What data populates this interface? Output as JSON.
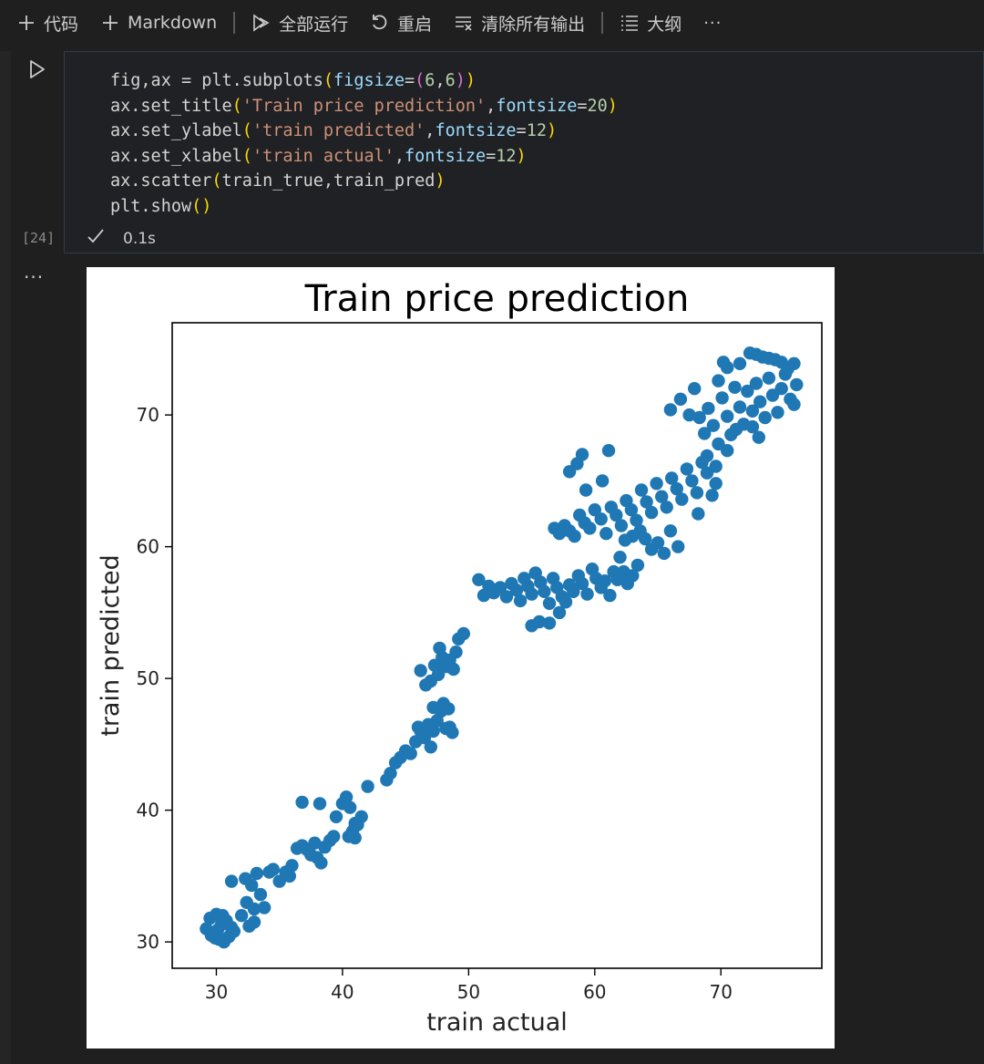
{
  "toolbar": {
    "add_code": "代码",
    "add_markdown": "Markdown",
    "run_all": "全部运行",
    "restart": "重启",
    "clear_outputs": "清除所有输出",
    "outline": "大纲",
    "more": "···"
  },
  "cell": {
    "execution_count": "[24]",
    "exec_time": "0.1s",
    "lines": [
      [
        {
          "t": "fig,ax = plt.subplots",
          "c": ""
        },
        {
          "t": "(",
          "c": "p1"
        },
        {
          "t": "figsize",
          "c": "kw"
        },
        {
          "t": "=",
          "c": ""
        },
        {
          "t": "(",
          "c": "p2"
        },
        {
          "t": "6",
          "c": "num"
        },
        {
          "t": ",",
          "c": ""
        },
        {
          "t": "6",
          "c": "num"
        },
        {
          "t": ")",
          "c": "p2"
        },
        {
          "t": ")",
          "c": "p1"
        }
      ],
      [
        {
          "t": "ax.set_title",
          "c": ""
        },
        {
          "t": "(",
          "c": "p1"
        },
        {
          "t": "'Train price prediction'",
          "c": "str"
        },
        {
          "t": ",",
          "c": ""
        },
        {
          "t": "fontsize",
          "c": "kw"
        },
        {
          "t": "=",
          "c": ""
        },
        {
          "t": "20",
          "c": "num"
        },
        {
          "t": ")",
          "c": "p1"
        }
      ],
      [
        {
          "t": "ax.set_ylabel",
          "c": ""
        },
        {
          "t": "(",
          "c": "p1"
        },
        {
          "t": "'train predicted'",
          "c": "str"
        },
        {
          "t": ",",
          "c": ""
        },
        {
          "t": "fontsize",
          "c": "kw"
        },
        {
          "t": "=",
          "c": ""
        },
        {
          "t": "12",
          "c": "num"
        },
        {
          "t": ")",
          "c": "p1"
        }
      ],
      [
        {
          "t": "ax.set_xlabel",
          "c": ""
        },
        {
          "t": "(",
          "c": "p1"
        },
        {
          "t": "'train actual'",
          "c": "str"
        },
        {
          "t": ",",
          "c": ""
        },
        {
          "t": "fontsize",
          "c": "kw"
        },
        {
          "t": "=",
          "c": ""
        },
        {
          "t": "12",
          "c": "num"
        },
        {
          "t": ")",
          "c": "p1"
        }
      ],
      [
        {
          "t": "ax.scatter",
          "c": ""
        },
        {
          "t": "(",
          "c": "p1"
        },
        {
          "t": "train_true,train_pred",
          "c": ""
        },
        {
          "t": ")",
          "c": "p1"
        }
      ],
      [
        {
          "t": "plt.show",
          "c": ""
        },
        {
          "t": "()",
          "c": "p1"
        }
      ]
    ]
  },
  "output": {
    "ellipsis": "···"
  },
  "chart_data": {
    "type": "scatter",
    "title": "Train price prediction",
    "xlabel": "train actual",
    "ylabel": "train predicted",
    "xlim": [
      26.5,
      78
    ],
    "ylim": [
      28,
      77
    ],
    "xticks": [
      30,
      40,
      50,
      60,
      70
    ],
    "yticks": [
      30,
      40,
      50,
      60,
      70
    ],
    "color": "#1f77b4",
    "points": [
      [
        29.2,
        31.0
      ],
      [
        29.5,
        31.8
      ],
      [
        29.8,
        30.6
      ],
      [
        30.0,
        32.1
      ],
      [
        30.2,
        30.2
      ],
      [
        30.4,
        31.3
      ],
      [
        30.6,
        30.0
      ],
      [
        30.8,
        31.6
      ],
      [
        31.0,
        30.4
      ],
      [
        31.2,
        31.1
      ],
      [
        30.1,
        30.9
      ],
      [
        29.9,
        30.3
      ],
      [
        30.5,
        32.0
      ],
      [
        31.4,
        30.8
      ],
      [
        29.6,
        30.5
      ],
      [
        31.2,
        34.6
      ],
      [
        32.0,
        32.0
      ],
      [
        32.4,
        33.0
      ],
      [
        32.6,
        31.2
      ],
      [
        32.8,
        34.3
      ],
      [
        33.0,
        32.5
      ],
      [
        33.2,
        35.2
      ],
      [
        33.5,
        33.6
      ],
      [
        33.8,
        32.6
      ],
      [
        34.2,
        35.3
      ],
      [
        34.5,
        35.5
      ],
      [
        35.0,
        34.6
      ],
      [
        35.5,
        35.3
      ],
      [
        35.8,
        35.0
      ],
      [
        36.0,
        35.8
      ],
      [
        32.3,
        34.8
      ],
      [
        33.0,
        31.5
      ],
      [
        36.4,
        37.1
      ],
      [
        36.8,
        37.3
      ],
      [
        37.2,
        37.0
      ],
      [
        37.5,
        36.6
      ],
      [
        37.8,
        37.5
      ],
      [
        38.0,
        36.4
      ],
      [
        38.3,
        36.0
      ],
      [
        38.6,
        37.2
      ],
      [
        39.0,
        37.7
      ],
      [
        39.3,
        38.0
      ],
      [
        36.8,
        40.6
      ],
      [
        38.2,
        40.5
      ],
      [
        39.5,
        39.5
      ],
      [
        40.0,
        40.5
      ],
      [
        40.3,
        41.0
      ],
      [
        40.6,
        40.2
      ],
      [
        40.8,
        38.4
      ],
      [
        41.0,
        39.0
      ],
      [
        41.2,
        38.9
      ],
      [
        41.5,
        39.5
      ],
      [
        41.0,
        37.9
      ],
      [
        40.5,
        38.0
      ],
      [
        42.0,
        41.8
      ],
      [
        43.5,
        42.3
      ],
      [
        43.8,
        42.8
      ],
      [
        44.2,
        43.6
      ],
      [
        44.6,
        44.0
      ],
      [
        45.0,
        44.5
      ],
      [
        45.4,
        44.3
      ],
      [
        45.8,
        45.2
      ],
      [
        46.2,
        46.0
      ],
      [
        46.5,
        45.5
      ],
      [
        46.8,
        46.5
      ],
      [
        47.2,
        46.0
      ],
      [
        47.5,
        46.8
      ],
      [
        47.8,
        47.5
      ],
      [
        48.2,
        46.2
      ],
      [
        48.5,
        46.3
      ],
      [
        48.7,
        45.9
      ],
      [
        47.0,
        44.8
      ],
      [
        46.0,
        46.3
      ],
      [
        46.2,
        50.6
      ],
      [
        46.6,
        49.5
      ],
      [
        47.0,
        49.8
      ],
      [
        47.3,
        51.0
      ],
      [
        47.6,
        50.3
      ],
      [
        47.9,
        51.6
      ],
      [
        48.2,
        50.9
      ],
      [
        48.5,
        51.4
      ],
      [
        48.8,
        50.7
      ],
      [
        49.0,
        52.0
      ],
      [
        49.2,
        53.0
      ],
      [
        49.6,
        53.4
      ],
      [
        47.2,
        47.8
      ],
      [
        48.0,
        48.1
      ],
      [
        48.4,
        47.7
      ],
      [
        47.7,
        52.3
      ],
      [
        50.8,
        57.5
      ],
      [
        51.2,
        56.3
      ],
      [
        51.6,
        57.0
      ],
      [
        52.0,
        56.5
      ],
      [
        52.5,
        56.9
      ],
      [
        53.0,
        56.2
      ],
      [
        53.4,
        57.2
      ],
      [
        53.8,
        56.7
      ],
      [
        54.1,
        55.9
      ],
      [
        54.4,
        57.6
      ],
      [
        54.7,
        57.0
      ],
      [
        55.0,
        56.4
      ],
      [
        55.3,
        58.0
      ],
      [
        55.7,
        57.3
      ],
      [
        56.0,
        56.6
      ],
      [
        56.4,
        55.7
      ],
      [
        56.7,
        57.6
      ],
      [
        57.0,
        56.9
      ],
      [
        57.4,
        56.2
      ],
      [
        57.7,
        55.8
      ],
      [
        58.0,
        57.1
      ],
      [
        58.3,
        56.6
      ],
      [
        58.7,
        57.8
      ],
      [
        59.0,
        57.2
      ],
      [
        59.4,
        56.4
      ],
      [
        59.8,
        58.3
      ],
      [
        60.1,
        57.6
      ],
      [
        60.5,
        56.9
      ],
      [
        60.8,
        57.4
      ],
      [
        61.2,
        56.3
      ],
      [
        61.5,
        58.1
      ],
      [
        61.8,
        57.5
      ],
      [
        62.0,
        59.2
      ],
      [
        62.3,
        58.1
      ],
      [
        62.6,
        57.2
      ],
      [
        63.0,
        57.8
      ],
      [
        63.4,
        58.6
      ],
      [
        55.0,
        54.0
      ],
      [
        55.6,
        54.3
      ],
      [
        56.4,
        54.2
      ],
      [
        57.2,
        55.0
      ],
      [
        56.8,
        61.4
      ],
      [
        57.2,
        61.0
      ],
      [
        57.6,
        61.6
      ],
      [
        58.0,
        61.2
      ],
      [
        58.4,
        60.8
      ],
      [
        58.8,
        62.4
      ],
      [
        59.2,
        61.8
      ],
      [
        59.6,
        61.4
      ],
      [
        60.0,
        62.8
      ],
      [
        60.5,
        62.1
      ],
      [
        60.9,
        61.0
      ],
      [
        61.3,
        63.0
      ],
      [
        61.7,
        62.4
      ],
      [
        62.1,
        61.6
      ],
      [
        62.5,
        63.5
      ],
      [
        62.9,
        62.8
      ],
      [
        63.3,
        62.0
      ],
      [
        63.7,
        64.3
      ],
      [
        64.1,
        63.4
      ],
      [
        64.5,
        62.6
      ],
      [
        64.9,
        64.8
      ],
      [
        65.3,
        63.8
      ],
      [
        65.7,
        63.0
      ],
      [
        66.1,
        65.2
      ],
      [
        66.5,
        64.4
      ],
      [
        66.9,
        63.6
      ],
      [
        67.3,
        65.9
      ],
      [
        67.7,
        65.0
      ],
      [
        68.1,
        64.1
      ],
      [
        68.5,
        66.4
      ],
      [
        68.9,
        65.6
      ],
      [
        64.0,
        60.6
      ],
      [
        64.5,
        59.8
      ],
      [
        65.0,
        60.3
      ],
      [
        65.5,
        59.5
      ],
      [
        66.0,
        61.2
      ],
      [
        66.6,
        60.0
      ],
      [
        63.6,
        61.2
      ],
      [
        63.0,
        60.8
      ],
      [
        62.4,
        60.5
      ],
      [
        58.0,
        65.7
      ],
      [
        58.6,
        66.3
      ],
      [
        59.0,
        67.0
      ],
      [
        59.3,
        64.3
      ],
      [
        61.1,
        67.3
      ],
      [
        60.6,
        65.0
      ],
      [
        68.2,
        62.5
      ],
      [
        69.3,
        63.9
      ],
      [
        69.6,
        64.8
      ],
      [
        68.3,
        69.8
      ],
      [
        68.7,
        68.6
      ],
      [
        69.0,
        70.5
      ],
      [
        69.4,
        69.2
      ],
      [
        69.8,
        67.8
      ],
      [
        70.1,
        71.3
      ],
      [
        70.5,
        69.9
      ],
      [
        70.8,
        68.5
      ],
      [
        71.1,
        72.1
      ],
      [
        71.5,
        70.6
      ],
      [
        71.8,
        69.3
      ],
      [
        72.1,
        71.8
      ],
      [
        72.5,
        70.3
      ],
      [
        72.8,
        72.4
      ],
      [
        73.1,
        71.0
      ],
      [
        73.5,
        69.8
      ],
      [
        73.8,
        72.8
      ],
      [
        74.1,
        71.5
      ],
      [
        74.5,
        70.2
      ],
      [
        74.8,
        72.0
      ],
      [
        75.1,
        73.1
      ],
      [
        75.5,
        71.2
      ],
      [
        75.8,
        70.8
      ],
      [
        76.0,
        72.3
      ],
      [
        66.0,
        70.4
      ],
      [
        66.8,
        71.2
      ],
      [
        67.5,
        70.0
      ],
      [
        67.9,
        72.0
      ],
      [
        70.5,
        73.6
      ],
      [
        71.5,
        73.9
      ],
      [
        72.3,
        74.7
      ],
      [
        72.8,
        74.6
      ],
      [
        73.3,
        74.4
      ],
      [
        73.8,
        74.3
      ],
      [
        74.3,
        74.2
      ],
      [
        74.8,
        74.0
      ],
      [
        75.3,
        73.5
      ],
      [
        75.8,
        73.9
      ],
      [
        69.8,
        72.6
      ],
      [
        70.2,
        74.0
      ],
      [
        72.5,
        69.1
      ],
      [
        73.0,
        68.3
      ],
      [
        71.2,
        68.9
      ],
      [
        68.9,
        66.9
      ],
      [
        69.6,
        66.1
      ],
      [
        70.5,
        67.3
      ]
    ]
  }
}
